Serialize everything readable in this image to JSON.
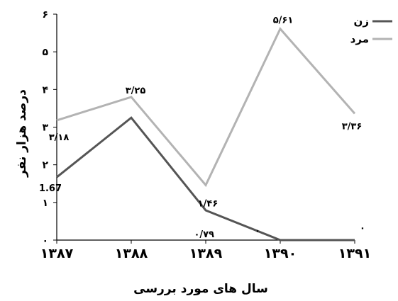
{
  "chart_data": {
    "type": "line",
    "x": [
      1387,
      1388,
      1389,
      1390,
      1391
    ],
    "x_tick_labels": [
      "۱۳۸۷",
      "۱۳۸۸",
      "۱۳۸۹",
      "۱۳۹۰",
      "۱۳۹۱"
    ],
    "y_tick_labels": [
      "۰",
      "۱",
      "۲",
      "۳",
      "۴",
      "۵",
      "۶"
    ],
    "ylim": [
      0,
      6
    ],
    "xlabel": "سال های مورد بررسی",
    "ylabel": "درصد هزار نفر",
    "legend_position": "top-right",
    "grid": false,
    "series": [
      {
        "name": "زن",
        "color": "#555555",
        "values": [
          1.67,
          3.25,
          0.79,
          0,
          0
        ],
        "labels": [
          "1.67",
          "۳/۲۵",
          "۰/۷۹",
          "۰",
          "۰"
        ]
      },
      {
        "name": "مرد",
        "color": "#b3b3b3",
        "values": [
          3.18,
          3.8,
          1.46,
          5.61,
          3.36
        ],
        "labels": [
          "۳/۱۸",
          "",
          "۱/۴۶",
          "۵/۶۱",
          "۳/۳۶"
        ]
      }
    ]
  }
}
